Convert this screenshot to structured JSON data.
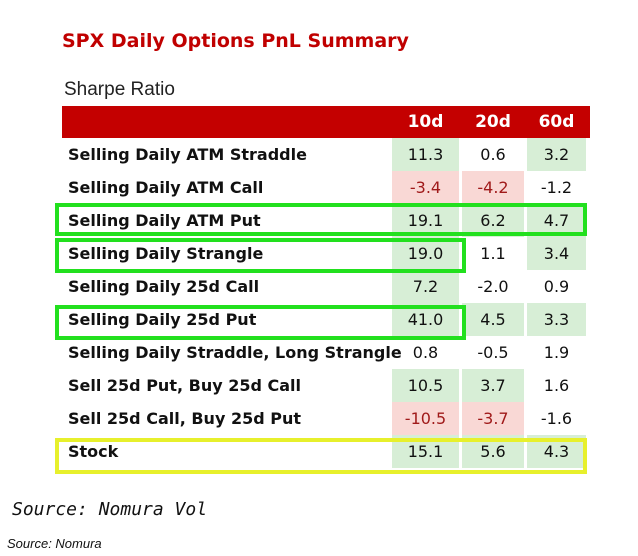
{
  "title": "SPX Daily Options PnL Summary",
  "subtitle": "Sharpe Ratio",
  "columns": [
    "10d",
    "20d",
    "60d"
  ],
  "colors": {
    "header": "#c40000",
    "positive": "#d7eed6",
    "negative": "#f9d8d5",
    "highlight_green": "#22e01e",
    "highlight_yellow": "#e7f02c"
  },
  "chart_data": {
    "type": "table",
    "title": "SPX Daily Options PnL Summary",
    "subtitle": "Sharpe Ratio",
    "columns": [
      "10d",
      "20d",
      "60d"
    ],
    "rows": [
      {
        "label": "Selling Daily ATM Straddle",
        "values": [
          "11.3",
          "0.6",
          "3.2"
        ],
        "shade": [
          "pos",
          "",
          "pos"
        ]
      },
      {
        "label": "Selling Daily ATM Call",
        "values": [
          "-3.4",
          "-4.2",
          "-1.2"
        ],
        "shade": [
          "neg",
          "neg",
          ""
        ]
      },
      {
        "label": "Selling Daily ATM Put",
        "values": [
          "19.1",
          "6.2",
          "4.7"
        ],
        "shade": [
          "pos",
          "pos",
          "pos"
        ]
      },
      {
        "label": "Selling Daily Strangle",
        "values": [
          "19.0",
          "1.1",
          "3.4"
        ],
        "shade": [
          "pos",
          "",
          "pos"
        ]
      },
      {
        "label": "Selling Daily 25d Call",
        "values": [
          "7.2",
          "-2.0",
          "0.9"
        ],
        "shade": [
          "pos",
          "",
          ""
        ]
      },
      {
        "label": "Selling Daily 25d Put",
        "values": [
          "41.0",
          "4.5",
          "3.3"
        ],
        "shade": [
          "pos",
          "pos",
          "pos"
        ]
      },
      {
        "label": "Selling Daily Straddle, Long Strangle",
        "values": [
          "0.8",
          "-0.5",
          "1.9"
        ],
        "shade": [
          "",
          "",
          ""
        ]
      },
      {
        "label": "Sell 25d Put, Buy 25d Call",
        "values": [
          "10.5",
          "3.7",
          "1.6"
        ],
        "shade": [
          "pos",
          "pos",
          ""
        ]
      },
      {
        "label": "Sell 25d Call, Buy 25d Put",
        "values": [
          "-10.5",
          "-3.7",
          "-1.6"
        ],
        "shade": [
          "neg",
          "neg",
          ""
        ]
      },
      {
        "label": "Stock",
        "values": [
          "15.1",
          "5.6",
          "4.3"
        ],
        "shade": [
          "pos",
          "pos",
          "pos"
        ]
      }
    ]
  },
  "source_primary": "Source: Nomura Vol",
  "source_secondary": "Source: Nomura"
}
